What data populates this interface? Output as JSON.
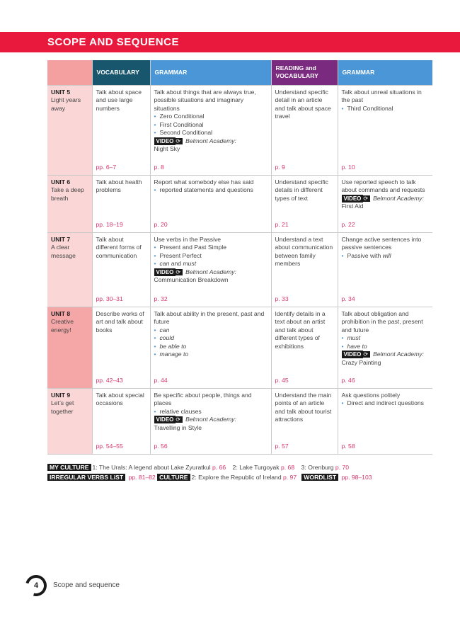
{
  "title": "SCOPE AND SEQUENCE",
  "headers": [
    "",
    "VOCABULARY",
    "GRAMMAR",
    "READING and VOCABULARY",
    "GRAMMAR"
  ],
  "colors": {
    "banner": "#e8193c",
    "vocabulary": "#17566d",
    "grammar": "#4a96d7",
    "reading": "#7a2a7f",
    "unit_cell": "#fbd6d6",
    "unit_cell_highlight": "#f5a7a7",
    "page_link": "#d6336c"
  },
  "video_label": "VIDEO",
  "rows": [
    {
      "unit": "UNIT 5",
      "name": "Light years away",
      "highlight": false,
      "cells": [
        {
          "text": "Talk about space and use large numbers",
          "bullets": [],
          "page": "pp. 6–7"
        },
        {
          "text": "Talk about things that are always true, possible situations and imaginary situations",
          "bullets": [
            [
              {
                "t": "Zero Conditional"
              }
            ],
            [
              {
                "t": "First Conditional"
              }
            ],
            [
              {
                "t": "Second Conditional"
              }
            ]
          ],
          "video": {
            "series": "Belmont Academy:",
            "title": "Night Sky"
          },
          "page": "p. 8"
        },
        {
          "text": "Understand specific detail in an article and talk about space travel",
          "bullets": [],
          "page": "p. 9"
        },
        {
          "text": "Talk about unreal situations in the past",
          "bullets": [
            [
              {
                "t": "Third Conditional"
              }
            ]
          ],
          "page": "p. 10"
        }
      ]
    },
    {
      "unit": "UNIT 6",
      "name": "Take a deep breath",
      "highlight": false,
      "cells": [
        {
          "text": "Talk about health problems",
          "bullets": [],
          "page": "pp. 18–19"
        },
        {
          "text": "Report what somebody else has said",
          "bullets": [
            [
              {
                "t": "reported statements and questions"
              }
            ]
          ],
          "page": "p. 20"
        },
        {
          "text": "Understand specific details in different types of text",
          "bullets": [],
          "page": "p. 21"
        },
        {
          "text": "Use reported speech to talk about commands and requests",
          "bullets": [],
          "video": {
            "series": "Belmont Academy:",
            "title": "First Aid"
          },
          "page": "p. 22"
        }
      ]
    },
    {
      "unit": "UNIT 7",
      "name": "A clear message",
      "highlight": false,
      "cells": [
        {
          "text": "Talk about different forms of communication",
          "bullets": [],
          "page": "pp. 30–31"
        },
        {
          "text": "Use verbs in the Passive",
          "bullets": [
            [
              {
                "t": "Present and Past Simple"
              }
            ],
            [
              {
                "t": "Present Perfect"
              }
            ],
            [
              {
                "t": "can",
                "i": true
              },
              {
                "t": " and "
              },
              {
                "t": "must",
                "i": true
              }
            ]
          ],
          "video": {
            "series": "Belmont Academy:",
            "title": "Communication Breakdown"
          },
          "page": "p. 32"
        },
        {
          "text": "Understand a text about communication between family members",
          "bullets": [],
          "page": "p. 33"
        },
        {
          "text": "Change active sentences into passive sentences",
          "bullets": [
            [
              {
                "t": "Passive with "
              },
              {
                "t": "will",
                "i": true
              }
            ]
          ],
          "page": "p. 34"
        }
      ]
    },
    {
      "unit": "UNIT 8",
      "name": "Creative energy!",
      "highlight": true,
      "cells": [
        {
          "text": "Describe works of art and talk about books",
          "bullets": [],
          "page": "pp. 42–43"
        },
        {
          "text": "Talk about ability in the present, past and future",
          "bullets": [
            [
              {
                "t": "can",
                "i": true
              }
            ],
            [
              {
                "t": "could",
                "i": true
              }
            ],
            [
              {
                "t": "be able to",
                "i": true
              }
            ],
            [
              {
                "t": "manage to",
                "i": true
              }
            ]
          ],
          "page": "p. 44"
        },
        {
          "text": "Identify details in a text about an artist and talk about different types of exhibitions",
          "bullets": [],
          "page": "p. 45"
        },
        {
          "text": "Talk about obligation and prohibition in the past, present and future",
          "bullets": [
            [
              {
                "t": "must",
                "i": true
              }
            ],
            [
              {
                "t": "have to",
                "i": true
              }
            ]
          ],
          "video": {
            "series": "Belmont Academy:",
            "title": "Crazy Painting"
          },
          "page": "p. 46"
        }
      ]
    },
    {
      "unit": "UNIT 9",
      "name": "Let’s get together",
      "highlight": false,
      "cells": [
        {
          "text": "Talk about special occasions",
          "bullets": [],
          "page": "pp. 54–55"
        },
        {
          "text": "Be specific about people, things and places",
          "bullets": [
            [
              {
                "t": "relative clauses"
              }
            ]
          ],
          "video": {
            "series": "Belmont Academy:",
            "title": "Travelling in Style"
          },
          "page": "p. 56"
        },
        {
          "text": "Understand the main points of an article and talk about tourist attractions",
          "bullets": [],
          "page": "p. 57"
        },
        {
          "text": "Ask questions politely",
          "bullets": [
            [
              {
                "t": "Direct and indirect questions"
              }
            ]
          ],
          "page": "p. 58"
        }
      ]
    }
  ],
  "footer": {
    "line1": [
      {
        "tag": "MY CULTURE"
      },
      {
        "t": "1: The Urals: A legend about Lake Zyuratkul "
      },
      {
        "p": "p. 66"
      },
      {
        "t": "    2: Lake Turgoyak "
      },
      {
        "p": "p. 68"
      },
      {
        "t": "    3: Orenburg "
      },
      {
        "p": "p. 70"
      }
    ],
    "line2": [
      {
        "tag": "IRREGULAR VERBS LiST"
      },
      {
        "p": " pp. 81–82 "
      },
      {
        "tag": "CULTURE"
      },
      {
        "t": "2: Explore the Republic of Ireland "
      },
      {
        "p": "p. 97"
      },
      {
        "t": "   "
      },
      {
        "tag": "WORDLIST"
      },
      {
        "p": " pp. 98–103"
      }
    ]
  },
  "page_number": "4",
  "page_title": "Scope and sequence"
}
